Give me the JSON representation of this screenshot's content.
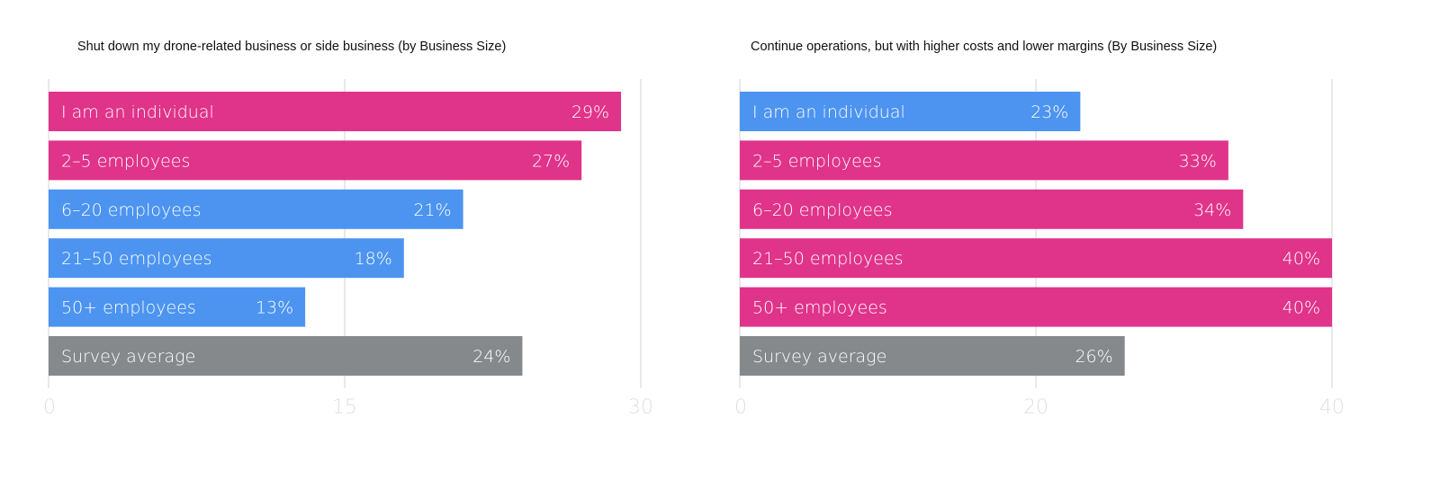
{
  "colors": {
    "highlight": "#E0338A",
    "other": "#4C94F0",
    "average": "#85898C",
    "grid": "#E2E2E2"
  },
  "chart_data": [
    {
      "type": "bar",
      "orientation": "horizontal",
      "title": "Shut down my drone-related business or side business (by Business Size)",
      "categories": [
        "I am an individual",
        "2–5 employees",
        "6–20 employees",
        "21–50 employees",
        "50+ employees",
        "Survey average"
      ],
      "values": [
        29,
        27,
        21,
        18,
        13,
        24
      ],
      "data_labels": [
        "29%",
        "27%",
        "21%",
        "18%",
        "13%",
        "24%"
      ],
      "bar_colors": [
        "highlight",
        "highlight",
        "other",
        "other",
        "other",
        "average"
      ],
      "xlim": [
        0,
        30
      ],
      "ticks": [
        "0",
        "15",
        "30"
      ],
      "tick_values": [
        0,
        15,
        30
      ],
      "grid": true
    },
    {
      "type": "bar",
      "orientation": "horizontal",
      "title": "Continue operations, but with higher costs and lower margins (By Business Size)",
      "categories": [
        "I am an individual",
        "2–5 employees",
        "6–20 employees",
        "21–50 employees",
        "50+ employees",
        "Survey average"
      ],
      "values": [
        23,
        33,
        34,
        40,
        40,
        26
      ],
      "data_labels": [
        "23%",
        "33%",
        "34%",
        "40%",
        "40%",
        "26%"
      ],
      "bar_colors": [
        "other",
        "highlight",
        "highlight",
        "highlight",
        "highlight",
        "average"
      ],
      "xlim": [
        0,
        40
      ],
      "ticks": [
        "0",
        "20",
        "40"
      ],
      "tick_values": [
        0,
        20,
        40
      ],
      "grid": true
    }
  ]
}
